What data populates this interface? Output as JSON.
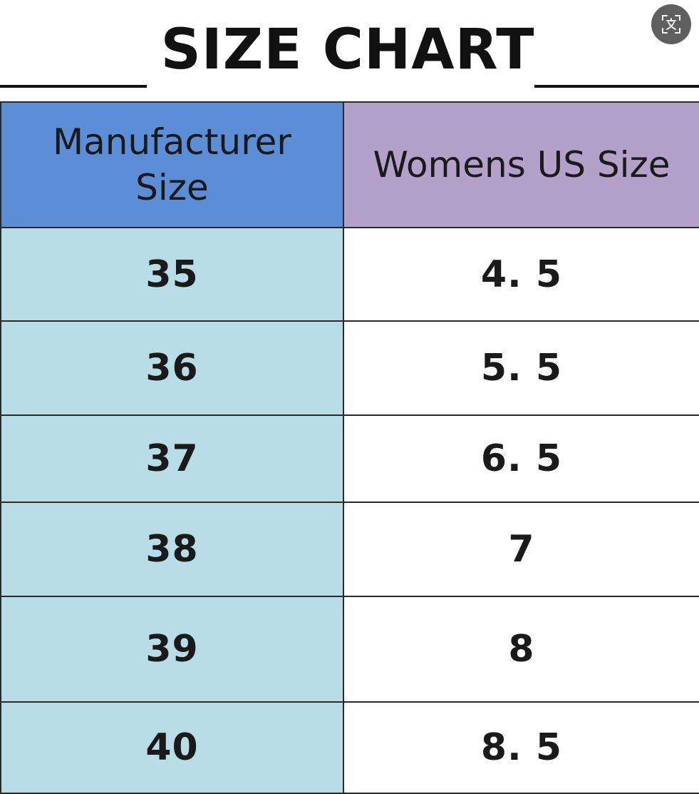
{
  "title": "SIZE CHART",
  "icons": {
    "translate": "translate-icon"
  },
  "colors": {
    "manufacturer_header": "#5b8ed6",
    "us_header": "#b3a1c9",
    "manufacturer_cells": "#b8dde7",
    "us_cells": "#ffffff",
    "translate_button": "#5f5f5f"
  },
  "table": {
    "headers": {
      "manufacturer_line1": "Manufacturer",
      "manufacturer_line2": "Size",
      "us": "Womens US Size"
    },
    "rows": [
      {
        "manufacturer": "35",
        "us": "4. 5"
      },
      {
        "manufacturer": "36",
        "us": "5. 5"
      },
      {
        "manufacturer": "37",
        "us": "6. 5"
      },
      {
        "manufacturer": "38",
        "us": "7"
      },
      {
        "manufacturer": "39",
        "us": "8"
      },
      {
        "manufacturer": "40",
        "us": "8. 5"
      }
    ]
  }
}
